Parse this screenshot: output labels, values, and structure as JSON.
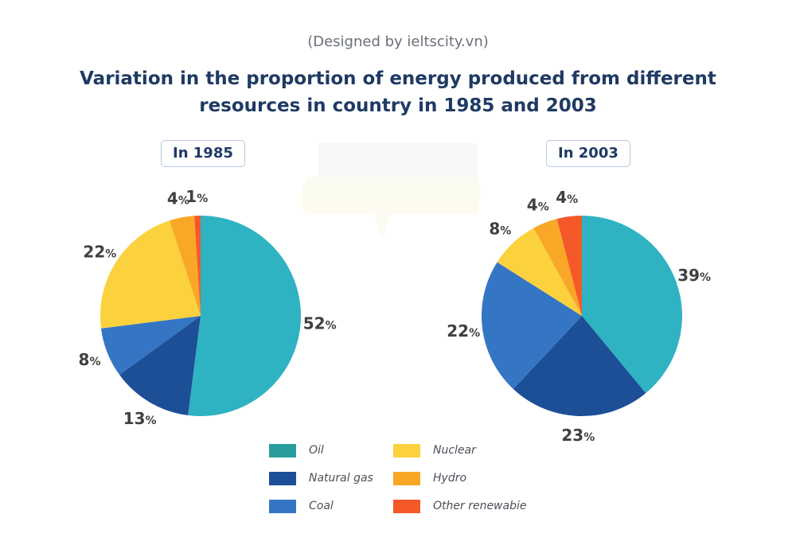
{
  "credit": "(Designed by ieltscity.vn)",
  "title_lines": [
    "Variation in the proportion of energy produced from different",
    "resources in country in 1985 and 2003"
  ],
  "colors": {
    "Oil": "#2fb3c2",
    "Natural gas": "#1d4f97",
    "Coal": "#3576c4",
    "Nuclear": "#fbd13e",
    "Hydro": "#f8a826",
    "Other renewable": "#f5592a"
  },
  "legend": [
    {
      "label": "Oil",
      "color": "#2a9d9d"
    },
    {
      "label": "Nuclear",
      "color": "#fbd13e"
    },
    {
      "label": "Natural gas",
      "color": "#1d4f97"
    },
    {
      "label": "Hydro",
      "color": "#f8a826"
    },
    {
      "label": "Coal",
      "color": "#3576c4"
    },
    {
      "label": "Other renewabie",
      "color": "#f5592a"
    }
  ],
  "chart_data": [
    {
      "type": "pie",
      "title": "In 1985",
      "categories": [
        "Oil",
        "Natural gas",
        "Coal",
        "Nuclear",
        "Hydro",
        "Other renewable"
      ],
      "values": [
        52,
        13,
        8,
        22,
        4,
        1
      ],
      "unit": "%"
    },
    {
      "type": "pie",
      "title": "In 2003",
      "categories": [
        "Oil",
        "Natural gas",
        "Coal",
        "Nuclear",
        "Hydro",
        "Other renewable"
      ],
      "values": [
        39,
        23,
        22,
        8,
        4,
        4
      ],
      "unit": "%"
    }
  ]
}
